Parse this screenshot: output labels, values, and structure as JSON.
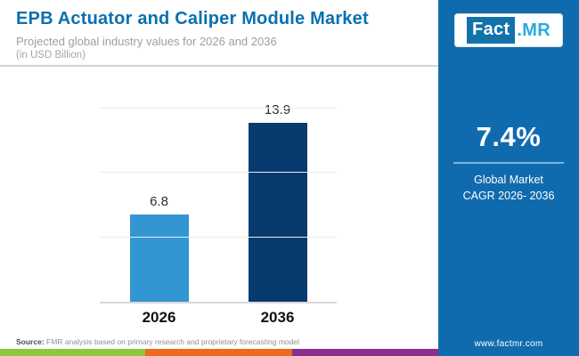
{
  "header": {
    "title": "EPB Actuator and Caliper Module Market",
    "subtitle": "Projected global industry values for 2026 and 2036",
    "unit_note": "(in USD Billion)",
    "title_color": "#0b70b0"
  },
  "chart_data": {
    "type": "bar",
    "categories": [
      "2026",
      "2036"
    ],
    "values": [
      6.8,
      13.9
    ],
    "value_labels": [
      "6.8",
      "13.9"
    ],
    "bar_colors": [
      "#3296d3",
      "#073a6e"
    ],
    "title": "EPB Actuator and Caliper Module Market",
    "subtitle": "Projected global industry values for 2026 and 2036 (in USD Billion)",
    "xlabel": "",
    "ylabel": "USD Billion",
    "ylim": [
      0,
      15
    ],
    "gridline_values": [
      5,
      10,
      15
    ],
    "grid": true,
    "legend": false
  },
  "sidebar": {
    "bg_color": "#106bae",
    "logo": {
      "part1": "Fact",
      "part2": ".MR"
    },
    "cagr_value": "7.4%",
    "cagr_label_line1": "Global Market",
    "cagr_label_line2": "CAGR 2026- 2036",
    "website": "www.factmr.com"
  },
  "footer": {
    "source_prefix": "Source:",
    "source_text": "FMR analysis based on primary research and proprietary forecasting model",
    "strip_colors": [
      "#8dc63f",
      "#ed6a1f",
      "#8b2f8f"
    ],
    "strip_widths": [
      163,
      165,
      164
    ]
  }
}
